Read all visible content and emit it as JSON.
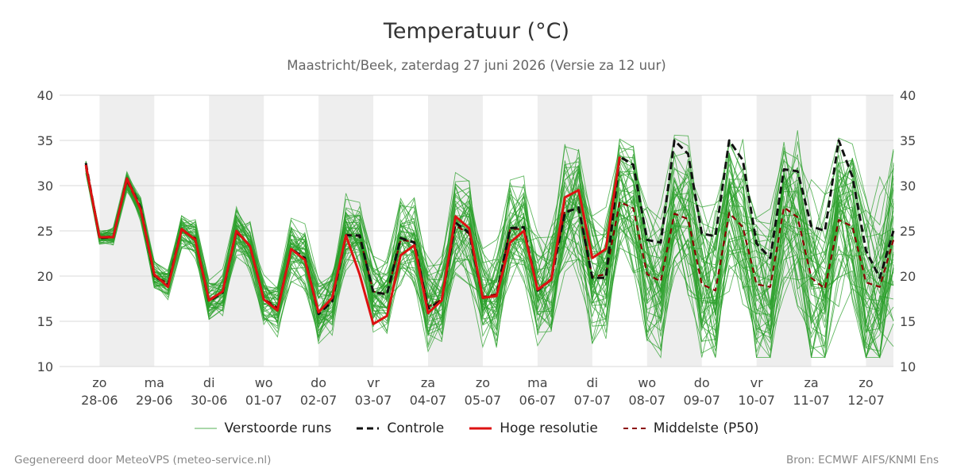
{
  "title": "Temperatuur (°C)",
  "subtitle": "Maastricht/Beek, zaterdag 27 juni 2026 (Versie za 12 uur)",
  "footer": {
    "left": "Gegenereerd door MeteoVPS (meteo-service.nl)",
    "right": "Bron: ECMWF AIFS/KNMI Ens"
  },
  "colors": {
    "ensemble": "#2ca02c",
    "controle": "#111111",
    "hoge_resolutie": "#dd1111",
    "p50": "#8b0000",
    "night_band": "#eeeeee",
    "grid": "#d8d8d8"
  },
  "chart_data": {
    "type": "line",
    "ylim": [
      10,
      40
    ],
    "yticks": [
      10,
      15,
      20,
      25,
      30,
      35,
      40
    ],
    "x_unit": "days since 2026-06-28 00:00",
    "xlim": [
      -0.73,
      14.5
    ],
    "xticks": [
      {
        "day": "zo",
        "date": "28-06"
      },
      {
        "day": "ma",
        "date": "29-06"
      },
      {
        "day": "di",
        "date": "30-06"
      },
      {
        "day": "wo",
        "date": "01-07"
      },
      {
        "day": "do",
        "date": "02-07"
      },
      {
        "day": "vr",
        "date": "03-07"
      },
      {
        "day": "za",
        "date": "04-07"
      },
      {
        "day": "zo",
        "date": "05-07"
      },
      {
        "day": "ma",
        "date": "06-07"
      },
      {
        "day": "di",
        "date": "07-07"
      },
      {
        "day": "wo",
        "date": "08-07"
      },
      {
        "day": "do",
        "date": "09-07"
      },
      {
        "day": "vr",
        "date": "10-07"
      },
      {
        "day": "za",
        "date": "11-07"
      },
      {
        "day": "zo",
        "date": "12-07"
      }
    ],
    "shaded_days": [
      "28-06",
      "30-06",
      "02-07",
      "04-07",
      "06-07",
      "08-07",
      "10-07",
      "12-07"
    ],
    "x": [
      -0.25,
      0,
      0.25,
      0.5,
      0.75,
      1,
      1.25,
      1.5,
      1.75,
      2,
      2.25,
      2.5,
      2.75,
      3,
      3.25,
      3.5,
      3.75,
      4,
      4.25,
      4.5,
      4.75,
      5,
      5.25,
      5.5,
      5.75,
      6,
      6.25,
      6.5,
      6.75,
      7,
      7.25,
      7.5,
      7.75,
      8,
      8.25,
      8.5,
      8.75,
      9,
      9.25,
      9.5,
      9.75,
      10,
      10.25,
      10.5,
      10.75,
      11,
      11.25,
      11.5,
      11.75,
      12,
      12.25,
      12.5,
      12.75,
      13,
      13.25,
      13.5,
      13.75,
      14,
      14.25,
      14.5
    ],
    "series": [
      {
        "name": "Controle",
        "values": [
          32.5,
          24.2,
          24.3,
          30.8,
          27.6,
          20.0,
          19.0,
          25.2,
          24.0,
          17.2,
          18.2,
          25.0,
          23.3,
          17.4,
          16.3,
          23.0,
          22.0,
          15.8,
          17.2,
          24.5,
          24.5,
          18.2,
          18.0,
          24.2,
          23.7,
          16.4,
          17.3,
          25.9,
          24.8,
          17.6,
          17.8,
          25.3,
          25.4,
          18.4,
          19.6,
          27.0,
          27.6,
          19.8,
          19.8,
          33.2,
          32.3,
          24.0,
          23.7,
          35.0,
          33.5,
          24.7,
          24.4,
          35.0,
          32.8,
          23.6,
          22.0,
          31.8,
          31.6,
          25.5,
          25.0,
          35.0,
          31.0,
          22.8,
          19.8,
          25.0
        ]
      },
      {
        "name": "Hoge resolutie",
        "values": [
          32.3,
          24.3,
          24.3,
          30.8,
          27.4,
          20.2,
          18.8,
          25.2,
          24.0,
          17.3,
          18.3,
          25.0,
          23.3,
          17.4,
          16.2,
          23.0,
          21.8,
          16.0,
          17.6,
          24.5,
          20.2,
          14.7,
          15.6,
          22.3,
          23.4,
          15.9,
          17.3,
          26.6,
          25.3,
          17.6,
          17.8,
          23.7,
          25.0,
          18.5,
          19.6,
          28.7,
          29.5,
          22.0,
          23.0,
          33.2,
          null,
          null,
          null,
          null,
          null,
          null,
          null,
          null,
          null,
          null,
          null,
          null,
          null,
          null,
          null,
          null,
          null,
          null,
          null,
          null
        ]
      },
      {
        "name": "Middelste (P50)",
        "values": [
          32.0,
          24.3,
          24.4,
          30.5,
          27.5,
          20.0,
          19.2,
          25.0,
          24.2,
          17.4,
          18.3,
          24.8,
          23.4,
          17.5,
          16.5,
          22.9,
          22.0,
          16.1,
          17.4,
          24.6,
          24.4,
          18.3,
          18.0,
          24.0,
          23.8,
          16.6,
          17.4,
          25.6,
          24.7,
          17.7,
          18.0,
          25.2,
          25.2,
          18.5,
          19.7,
          27.2,
          27.4,
          19.9,
          20.2,
          28.2,
          27.5,
          20.2,
          19.4,
          26.9,
          26.3,
          19.1,
          18.4,
          27.0,
          25.4,
          19.1,
          18.8,
          27.6,
          26.5,
          19.8,
          18.6,
          26.2,
          25.5,
          19.3,
          18.8,
          24.0
        ]
      }
    ],
    "legend": [
      "Verstoorde runs",
      "Controle",
      "Hoge resolutie",
      "Middelste (P50)"
    ],
    "legend_position": "bottom",
    "grid": true
  }
}
